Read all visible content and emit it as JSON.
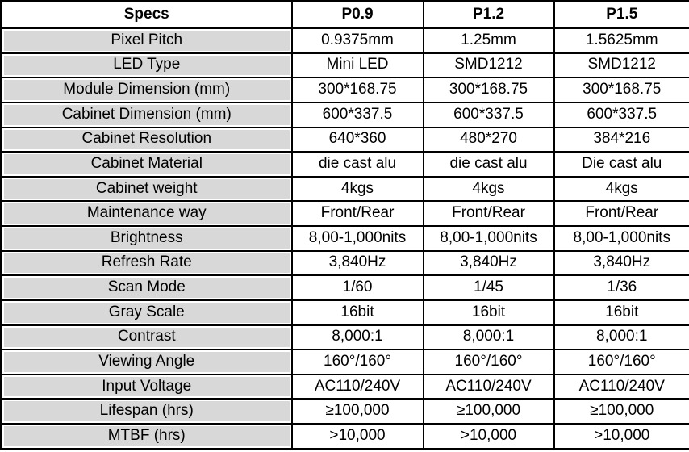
{
  "table": {
    "columns": [
      "Specs",
      "P0.9",
      "P1.2",
      "P1.5"
    ],
    "rows": [
      {
        "label": "Pixel Pitch",
        "values": [
          "0.9375mm",
          "1.25mm",
          "1.5625mm"
        ]
      },
      {
        "label": "LED Type",
        "values": [
          "Mini LED",
          "SMD1212",
          "SMD1212"
        ]
      },
      {
        "label": "Module Dimension (mm)",
        "values": [
          "300*168.75",
          "300*168.75",
          "300*168.75"
        ]
      },
      {
        "label": "Cabinet Dimension (mm)",
        "values": [
          "600*337.5",
          "600*337.5",
          "600*337.5"
        ]
      },
      {
        "label": "Cabinet Resolution",
        "values": [
          "640*360",
          "480*270",
          "384*216"
        ]
      },
      {
        "label": "Cabinet Material",
        "values": [
          "die cast alu",
          "die cast alu",
          "Die cast alu"
        ]
      },
      {
        "label": "Cabinet weight",
        "values": [
          "4kgs",
          "4kgs",
          "4kgs"
        ]
      },
      {
        "label": "Maintenance way",
        "values": [
          "Front/Rear",
          "Front/Rear",
          "Front/Rear"
        ]
      },
      {
        "label": "Brightness",
        "values": [
          "8,00-1,000nits",
          "8,00-1,000nits",
          "8,00-1,000nits"
        ]
      },
      {
        "label": "Refresh Rate",
        "values": [
          "3,840Hz",
          "3,840Hz",
          "3,840Hz"
        ]
      },
      {
        "label": "Scan Mode",
        "values": [
          "1/60",
          "1/45",
          "1/36"
        ]
      },
      {
        "label": "Gray Scale",
        "values": [
          "16bit",
          "16bit",
          "16bit"
        ]
      },
      {
        "label": "Contrast",
        "values": [
          "8,000:1",
          "8,000:1",
          "8,000:1"
        ]
      },
      {
        "label": "Viewing Angle",
        "values": [
          "160°/160°",
          "160°/160°",
          "160°/160°"
        ]
      },
      {
        "label": "Input Voltage",
        "values": [
          "AC110/240V",
          "AC110/240V",
          "AC110/240V"
        ]
      },
      {
        "label": "Lifespan (hrs)",
        "values": [
          "≥100,000",
          "≥100,000",
          "≥100,000"
        ]
      },
      {
        "label": "MTBF (hrs)",
        "values": [
          ">10,000",
          ">10,000",
          ">10,000"
        ]
      }
    ]
  },
  "colors": {
    "label_bg": "#d8d8d8",
    "border": "#000000",
    "background": "#ffffff",
    "text": "#000000"
  }
}
